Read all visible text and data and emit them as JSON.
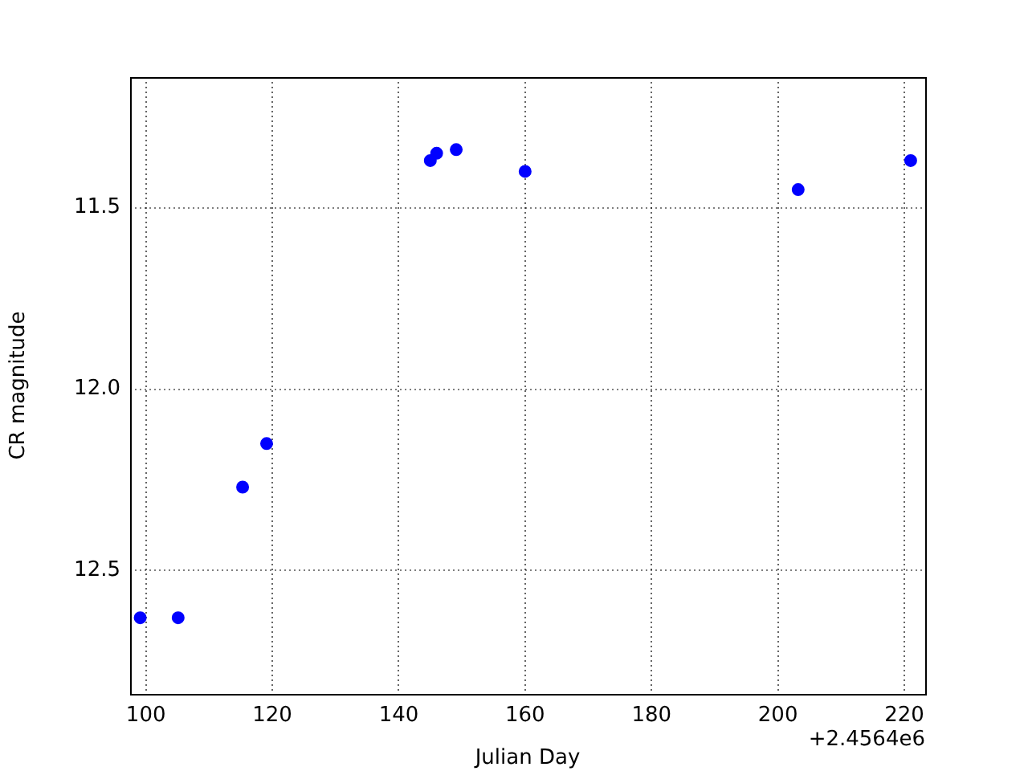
{
  "chart_data": {
    "type": "scatter",
    "xlabel": "Julian Day",
    "ylabel": "CR magnitude",
    "annotations": [
      "+2.4564e6"
    ],
    "x": [
      99.1,
      105.1,
      115.3,
      119.1,
      145.0,
      146.0,
      149.1,
      160.0,
      203.2,
      221.0
    ],
    "series": [
      {
        "color": "#0000ff",
        "values": [
          12.63,
          12.63,
          12.27,
          12.15,
          11.37,
          11.35,
          11.34,
          11.4,
          11.45,
          11.37
        ]
      }
    ],
    "xlim": [
      97.5,
      223.3
    ],
    "xticks": [
      100,
      120,
      140,
      160,
      180,
      200,
      220
    ],
    "ylim": [
      12.84,
      11.14
    ],
    "yticks": [
      {
        "value": 11.5,
        "label": "11.5"
      },
      {
        "value": 12,
        "label": "12.0"
      },
      {
        "value": 12.5,
        "label": "12.5"
      }
    ],
    "grid": true,
    "marker": "circle",
    "legend": false
  }
}
